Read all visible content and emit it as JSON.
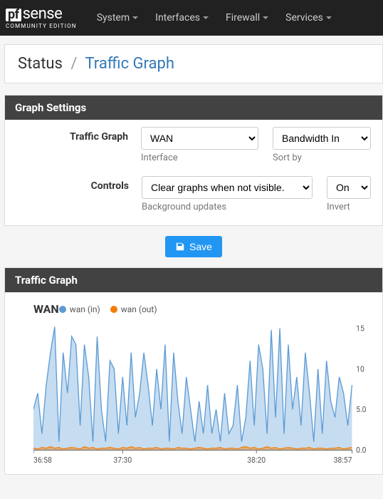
{
  "nav": {
    "logo_primary": "pf",
    "logo_secondary": "sense",
    "logo_sub": "COMMUNITY EDITION",
    "items": [
      "System",
      "Interfaces",
      "Firewall",
      "Services"
    ]
  },
  "breadcrumb": {
    "root": "Status",
    "sep": "/",
    "current": "Traffic Graph"
  },
  "panels": {
    "settings": {
      "title": "Graph Settings",
      "rows": [
        {
          "label": "Traffic Graph",
          "fields": [
            {
              "key": "interface",
              "width": "w-if",
              "value": "WAN",
              "help": "Interface"
            },
            {
              "key": "sortby",
              "width": "w-sort",
              "value": "Bandwidth In",
              "help": "Sort by"
            }
          ]
        },
        {
          "label": "Controls",
          "fields": [
            {
              "key": "bgupdates",
              "width": "w-bg",
              "value": "Clear graphs when not visible.",
              "help": "Background updates"
            },
            {
              "key": "invert",
              "width": "w-inv",
              "value": "On",
              "help": "Invert"
            }
          ]
        }
      ]
    },
    "graph": {
      "title": "Traffic Graph"
    }
  },
  "save_label": "Save",
  "chart": {
    "interface_label": "WAN",
    "legend": [
      {
        "label": "wan (in)",
        "color": "#5b9bd5"
      },
      {
        "label": "wan (out)",
        "color": "#f57c00"
      }
    ],
    "x_ticks": [
      "36:58",
      "37:30",
      "38:20",
      "38:57"
    ],
    "y_ticks": [
      "15",
      "10",
      "5.0",
      "0.0"
    ],
    "ymax": 15.5,
    "line_in_color": "#5b9bd5",
    "fill_in_color": "#5b9bd5",
    "fill_in_opacity": 0.35,
    "line_out_color": "#f57c00",
    "fill_out_color": "#f57c00",
    "fill_out_opacity": 0.45,
    "axis_color": "#666",
    "grid_color": "#eee",
    "in_values": [
      5,
      7,
      2,
      8,
      12,
      15.2,
      1,
      12,
      7,
      14,
      13,
      3,
      13,
      9,
      1,
      14,
      5,
      1,
      11,
      10,
      2,
      9,
      3,
      12,
      4,
      7,
      12,
      8,
      3,
      10,
      5,
      13,
      1,
      12,
      6,
      2,
      9,
      5,
      1,
      6,
      2,
      8,
      2,
      5,
      1,
      7,
      2,
      3,
      8,
      1,
      4,
      11,
      3,
      13,
      10,
      2,
      14.8,
      4,
      15,
      2,
      13,
      5,
      9,
      3,
      12,
      7,
      1,
      10,
      2,
      11,
      6,
      4,
      9,
      7,
      3,
      8
    ],
    "out_values": [
      0.2,
      0.1,
      0.3,
      0.2,
      0.4,
      0.2,
      0.3,
      0.1,
      0.2,
      0.3,
      0.2,
      0.1,
      0.4,
      0.2,
      0.3,
      0.1,
      0.2,
      0.2,
      0.3,
      0.2,
      0.1,
      0.3,
      0.2,
      0.4,
      0.2,
      0.3,
      0.1,
      0.2,
      0.2,
      0.3,
      0.1,
      0.2,
      0.2,
      0.1,
      0.3,
      0.2,
      0.2,
      0.1,
      0.2,
      0.3,
      0.2,
      0.1,
      0.2,
      0.2,
      0.3,
      0.1,
      0.2,
      0.2,
      0.1,
      0.3,
      0.4,
      0.2,
      0.3,
      0.1,
      0.2,
      0.4,
      0.2,
      0.3,
      0.1,
      0.2,
      0.3,
      0.2,
      0.1,
      0.2,
      0.2,
      0.3,
      0.1,
      0.2,
      0.2,
      0.1,
      0.2,
      0.2,
      0.3,
      0.1,
      0.2,
      0.3
    ]
  }
}
